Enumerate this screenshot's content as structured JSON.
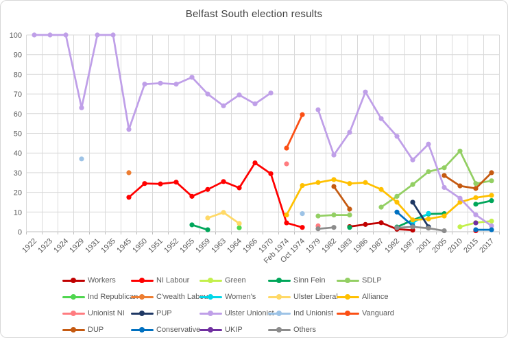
{
  "chart_data": {
    "type": "line",
    "title": "Belfast South election results",
    "xlabel": "",
    "ylabel": "",
    "ylim": [
      0,
      100
    ],
    "yticks": [
      0,
      10,
      20,
      30,
      40,
      50,
      60,
      70,
      80,
      90,
      100
    ],
    "grid": true,
    "legend_position": "bottom",
    "axis_label_color": "#595959",
    "gridline_color": "#d9d9d9",
    "categories": [
      "1922",
      "1923",
      "1924",
      "1929",
      "1931",
      "1935",
      "1945",
      "1950",
      "1951",
      "1952",
      "1955",
      "1959",
      "1963",
      "1964",
      "1966",
      "1970",
      "Feb 1974",
      "Oct 1974",
      "1979",
      "1982",
      "1983",
      "1986",
      "1987",
      "1992",
      "1997",
      "2001",
      "2005",
      "2010",
      "2015",
      "2017"
    ],
    "series": [
      {
        "name": "Workers",
        "color": "#C00000",
        "values": [
          null,
          null,
          null,
          null,
          null,
          null,
          null,
          null,
          null,
          null,
          null,
          null,
          null,
          null,
          null,
          null,
          null,
          null,
          null,
          null,
          2.6,
          3.7,
          4.6,
          1.3,
          0.8,
          null,
          null,
          null,
          null,
          null
        ]
      },
      {
        "name": "NI Labour",
        "color": "#FF0000",
        "values": [
          null,
          null,
          null,
          null,
          null,
          null,
          17.5,
          24.5,
          24.3,
          25.2,
          18,
          21.5,
          25.5,
          22.3,
          35,
          29.5,
          4.5,
          2.2,
          null,
          null,
          null,
          null,
          null,
          null,
          null,
          null,
          null,
          null,
          0.5,
          null
        ]
      },
      {
        "name": "Green",
        "color": "#C3F04C",
        "values": [
          null,
          null,
          null,
          null,
          null,
          null,
          null,
          null,
          null,
          null,
          null,
          null,
          null,
          null,
          null,
          null,
          null,
          null,
          null,
          null,
          null,
          null,
          null,
          null,
          null,
          null,
          null,
          2.5,
          4.6,
          5.4
        ]
      },
      {
        "name": "Sinn Fein",
        "color": "#00A65A",
        "values": [
          null,
          null,
          null,
          null,
          null,
          null,
          null,
          null,
          null,
          null,
          3.5,
          1,
          null,
          null,
          null,
          null,
          null,
          null,
          null,
          null,
          2.2,
          null,
          null,
          2.4,
          5.9,
          9,
          9.2,
          null,
          14,
          15.8
        ]
      },
      {
        "name": "SDLP",
        "color": "#93CF63",
        "values": [
          null,
          null,
          null,
          null,
          null,
          null,
          null,
          null,
          null,
          null,
          null,
          null,
          null,
          null,
          null,
          null,
          null,
          null,
          8,
          8.5,
          8.5,
          null,
          12.5,
          18,
          24,
          30.5,
          32.5,
          41,
          24.5,
          25.9
        ]
      },
      {
        "name": "Ind Republican",
        "color": "#4FD64F",
        "values": [
          null,
          null,
          null,
          null,
          null,
          null,
          null,
          null,
          null,
          null,
          null,
          null,
          null,
          2,
          null,
          null,
          null,
          null,
          null,
          null,
          null,
          null,
          null,
          null,
          null,
          null,
          null,
          null,
          null,
          null
        ]
      },
      {
        "name": "C'wealth Labour",
        "color": "#ED7D31",
        "values": [
          null,
          null,
          null,
          null,
          null,
          null,
          30,
          null,
          null,
          null,
          null,
          null,
          null,
          null,
          null,
          null,
          null,
          null,
          null,
          null,
          null,
          null,
          null,
          null,
          null,
          null,
          null,
          null,
          null,
          null
        ]
      },
      {
        "name": "Women's",
        "color": "#00D7E8",
        "values": [
          null,
          null,
          null,
          null,
          null,
          null,
          null,
          null,
          null,
          null,
          null,
          null,
          null,
          null,
          null,
          null,
          null,
          null,
          null,
          null,
          null,
          null,
          null,
          null,
          4.5,
          9.3,
          null,
          null,
          null,
          null
        ]
      },
      {
        "name": "Ulster Liberal",
        "color": "#FFD966",
        "values": [
          null,
          null,
          null,
          null,
          null,
          null,
          null,
          null,
          null,
          null,
          null,
          7,
          9.8,
          4.2,
          null,
          null,
          null,
          null,
          null,
          null,
          null,
          null,
          null,
          null,
          null,
          null,
          null,
          null,
          null,
          null
        ]
      },
      {
        "name": "Alliance",
        "color": "#FFC000",
        "values": [
          null,
          null,
          null,
          null,
          null,
          null,
          null,
          null,
          null,
          null,
          null,
          null,
          null,
          null,
          null,
          null,
          8.5,
          23.5,
          25,
          26.5,
          24.5,
          25,
          21.5,
          15,
          6,
          6.5,
          8,
          15,
          17.3,
          18.5
        ]
      },
      {
        "name": "Unionist NI",
        "color": "#FF7C80",
        "values": [
          null,
          null,
          null,
          null,
          null,
          null,
          null,
          null,
          null,
          null,
          null,
          null,
          null,
          null,
          null,
          null,
          34.5,
          null,
          3,
          null,
          null,
          null,
          null,
          null,
          null,
          null,
          null,
          null,
          null,
          null
        ]
      },
      {
        "name": "PUP",
        "color": "#1F3864",
        "values": [
          null,
          null,
          null,
          null,
          null,
          null,
          null,
          null,
          null,
          null,
          null,
          null,
          null,
          null,
          null,
          null,
          null,
          null,
          null,
          null,
          null,
          null,
          null,
          null,
          15,
          2.5,
          null,
          null,
          null,
          null
        ]
      },
      {
        "name": "Ulster Unionist",
        "color": "#BF9FE8",
        "values": [
          100,
          100,
          100,
          63,
          100,
          100,
          52,
          75,
          75.5,
          75,
          78.5,
          70,
          64,
          69.5,
          65,
          70.5,
          null,
          null,
          62,
          39,
          50.5,
          71,
          57.5,
          48.5,
          36.5,
          44.5,
          22.5,
          17,
          8.6,
          3
        ]
      },
      {
        "name": "Ind Unionist",
        "color": "#9DC3E6",
        "values": [
          null,
          null,
          null,
          37,
          null,
          null,
          null,
          null,
          null,
          null,
          null,
          null,
          null,
          null,
          null,
          null,
          null,
          9.2,
          null,
          null,
          null,
          null,
          null,
          null,
          null,
          null,
          null,
          null,
          null,
          null
        ]
      },
      {
        "name": "Vanguard",
        "color": "#FB4F14",
        "values": [
          null,
          null,
          null,
          null,
          null,
          null,
          null,
          null,
          null,
          null,
          null,
          null,
          null,
          null,
          null,
          null,
          42.5,
          59.5,
          null,
          null,
          null,
          null,
          null,
          null,
          null,
          null,
          null,
          null,
          null,
          null
        ]
      },
      {
        "name": "DUP",
        "color": "#C55A11",
        "values": [
          null,
          null,
          null,
          null,
          null,
          null,
          null,
          null,
          null,
          null,
          null,
          null,
          null,
          null,
          null,
          null,
          null,
          null,
          null,
          23,
          11.5,
          null,
          null,
          null,
          null,
          null,
          28.6,
          23.3,
          22,
          30
        ]
      },
      {
        "name": "Conservative",
        "color": "#0070C0",
        "values": [
          null,
          null,
          null,
          null,
          null,
          null,
          null,
          null,
          null,
          null,
          null,
          null,
          null,
          null,
          null,
          null,
          null,
          null,
          null,
          null,
          null,
          null,
          null,
          10,
          3,
          null,
          null,
          null,
          1,
          1
        ]
      },
      {
        "name": "UKIP",
        "color": "#7030A0",
        "values": [
          null,
          null,
          null,
          null,
          null,
          null,
          null,
          null,
          null,
          null,
          null,
          null,
          null,
          null,
          null,
          null,
          null,
          null,
          null,
          null,
          null,
          null,
          null,
          null,
          null,
          null,
          null,
          null,
          4.5,
          null
        ]
      },
      {
        "name": "Others",
        "color": "#8C8C8C",
        "values": [
          null,
          null,
          null,
          null,
          null,
          null,
          null,
          null,
          null,
          null,
          null,
          null,
          null,
          null,
          null,
          null,
          null,
          null,
          1.5,
          2.2,
          null,
          null,
          null,
          2,
          2.5,
          1.8,
          0.5,
          null,
          null,
          null
        ]
      }
    ]
  }
}
